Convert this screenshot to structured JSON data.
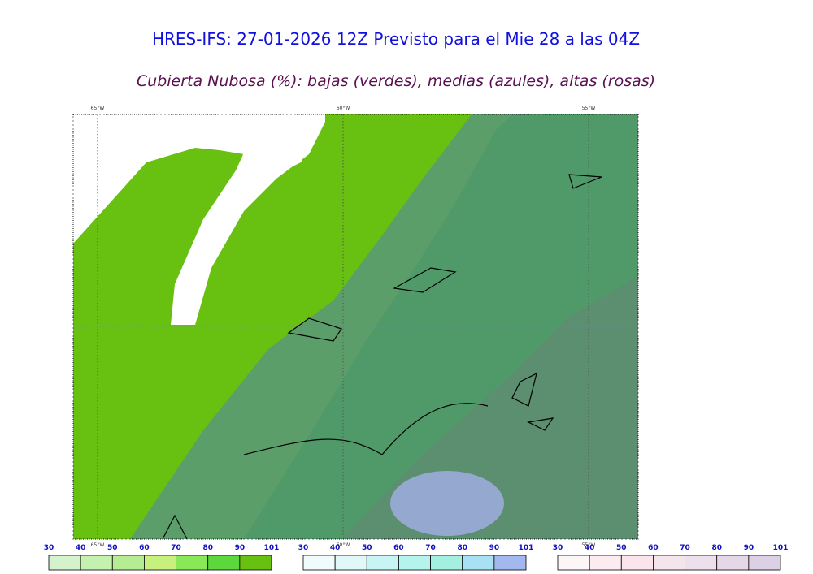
{
  "header": {
    "title": "HRES-IFS: 27-01-2026 12Z Previsto para el Mie 28 a las 04Z",
    "subtitle": "Cubierta Nubosa (%): bajas (verdes), medias (azules), altas (rosas)"
  },
  "map": {
    "lon_labels": [
      "65°W",
      "60°W",
      "55°W"
    ]
  },
  "legends": [
    {
      "ticks": [
        30,
        40,
        50,
        60,
        70,
        80,
        90,
        101
      ],
      "colors": [
        "#d4f2cc",
        "#c4f0b0",
        "#b6ec94",
        "#c8f07c",
        "#88e858",
        "#5cd83c",
        "#68c010"
      ]
    },
    {
      "ticks": [
        30,
        40,
        50,
        60,
        70,
        80,
        90,
        101
      ],
      "colors": [
        "#f0fcfc",
        "#e0f8f8",
        "#c8f4f4",
        "#b4f4ec",
        "#a4f0e0",
        "#a8e0f4",
        "#a4b8f0"
      ]
    },
    {
      "ticks": [
        30,
        40,
        50,
        60,
        70,
        80,
        90,
        101
      ],
      "colors": [
        "#fcf6f6",
        "#fcecf0",
        "#fce4ec",
        "#f4e4ec",
        "#ece0ec",
        "#e4d8e8",
        "#dcd0e4"
      ]
    }
  ]
}
